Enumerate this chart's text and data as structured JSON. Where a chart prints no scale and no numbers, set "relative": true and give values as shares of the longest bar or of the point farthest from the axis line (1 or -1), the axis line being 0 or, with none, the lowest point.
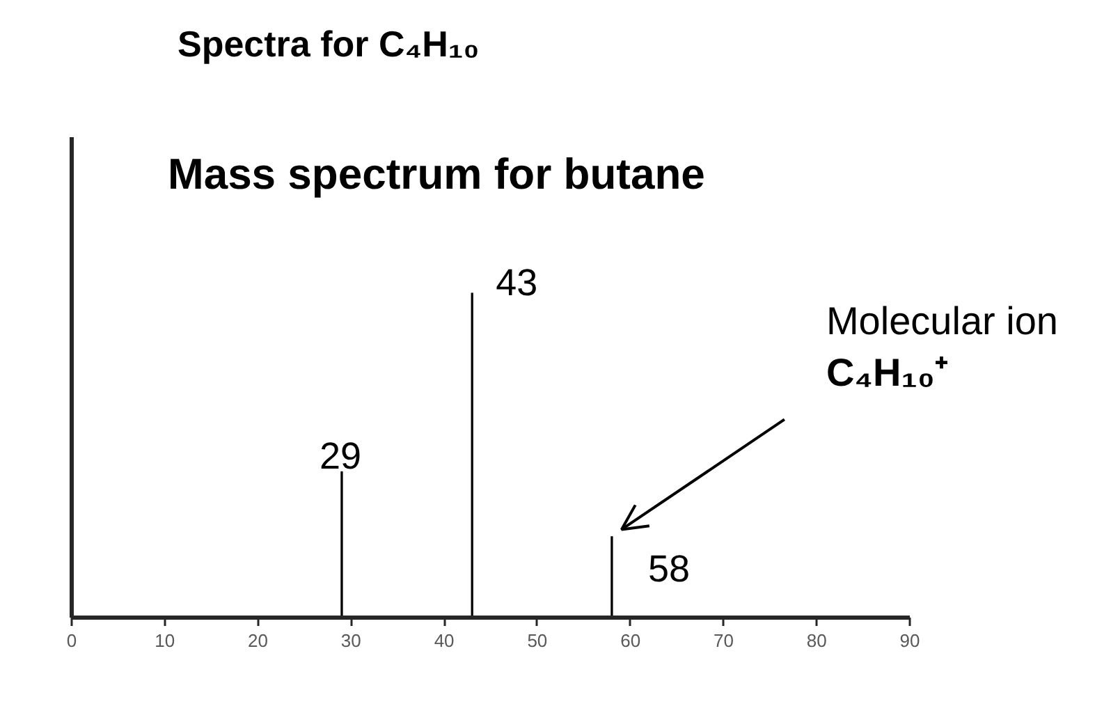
{
  "chart_data": {
    "type": "bar",
    "title": "Spectra for C₄H₁₀",
    "subtitle": "Mass spectrum for butane",
    "x": [
      29,
      43,
      58
    ],
    "values": [
      0.45,
      1,
      0.25
    ],
    "relative": true,
    "color": "#000000",
    "xlim": [
      0,
      90
    ],
    "xticks": [
      0,
      10,
      20,
      30,
      40,
      50,
      60,
      70,
      80,
      90
    ],
    "grid": false,
    "annotations": [
      {
        "text": "29",
        "x": 29,
        "y": 0.45
      },
      {
        "text": "43",
        "x": 43,
        "y": 1
      },
      {
        "text": "58",
        "x": 58,
        "y": 0.25
      },
      {
        "text": "Molecular ion\nC₄H₁₀⁺",
        "x": 58,
        "y": 0.25
      }
    ]
  }
}
